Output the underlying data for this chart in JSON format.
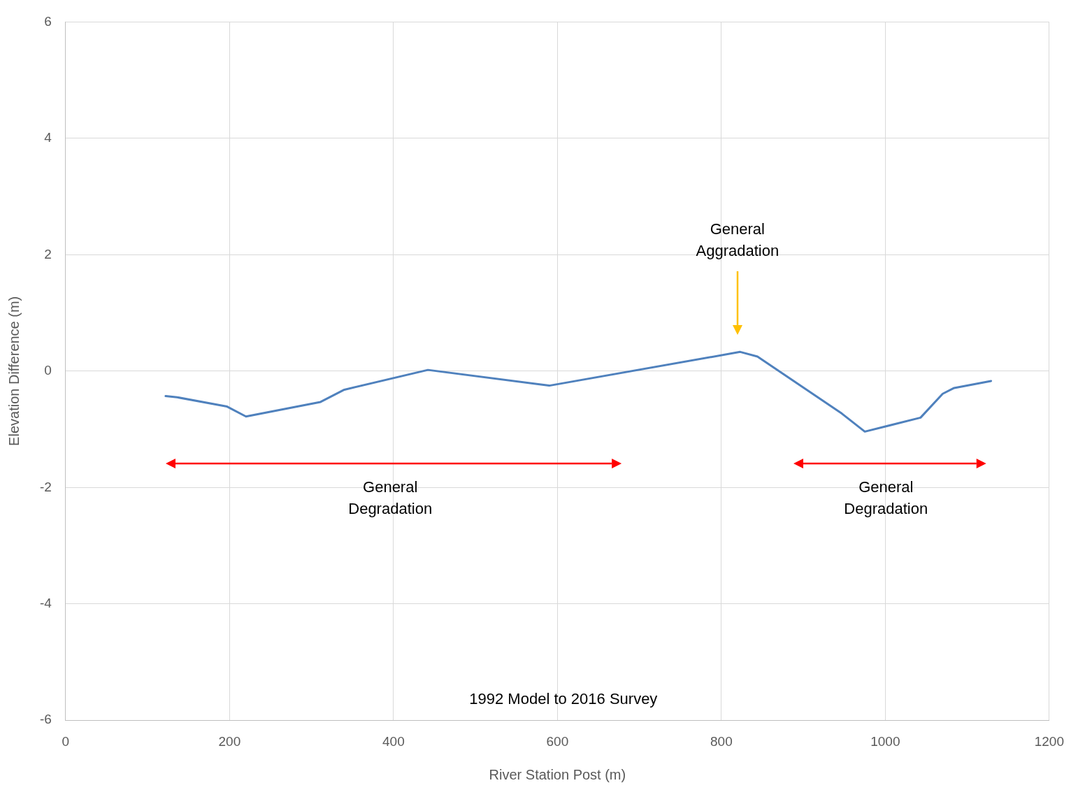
{
  "chart_data": {
    "type": "line",
    "xlabel": "River Station Post (m)",
    "ylabel": "Elevation Difference (m)",
    "x": [
      122,
      136,
      197,
      220,
      311,
      340,
      442,
      590,
      823,
      844,
      947,
      975,
      1043,
      1070,
      1084,
      1129
    ],
    "series": [
      {
        "color": "#4f81bd",
        "values": [
          -0.43,
          -0.45,
          -0.61,
          -0.78,
          -0.53,
          -0.32,
          0.02,
          -0.25,
          0.33,
          0.25,
          -0.73,
          -1.04,
          -0.8,
          -0.39,
          -0.29,
          -0.17
        ]
      }
    ],
    "xlim": [
      0,
      1200
    ],
    "xticks": [
      0,
      200,
      400,
      600,
      800,
      1000,
      1200
    ],
    "ylim": [
      -6,
      6
    ],
    "yticks": [
      -6,
      -4,
      -2,
      0,
      2,
      4,
      6
    ],
    "grid": true,
    "legend": false,
    "marker": "none",
    "line_style": "solid",
    "annotations": [
      "General Aggradation",
      "General Degradation",
      "General Degradation",
      "1992 Model to 2016 Survey"
    ]
  }
}
